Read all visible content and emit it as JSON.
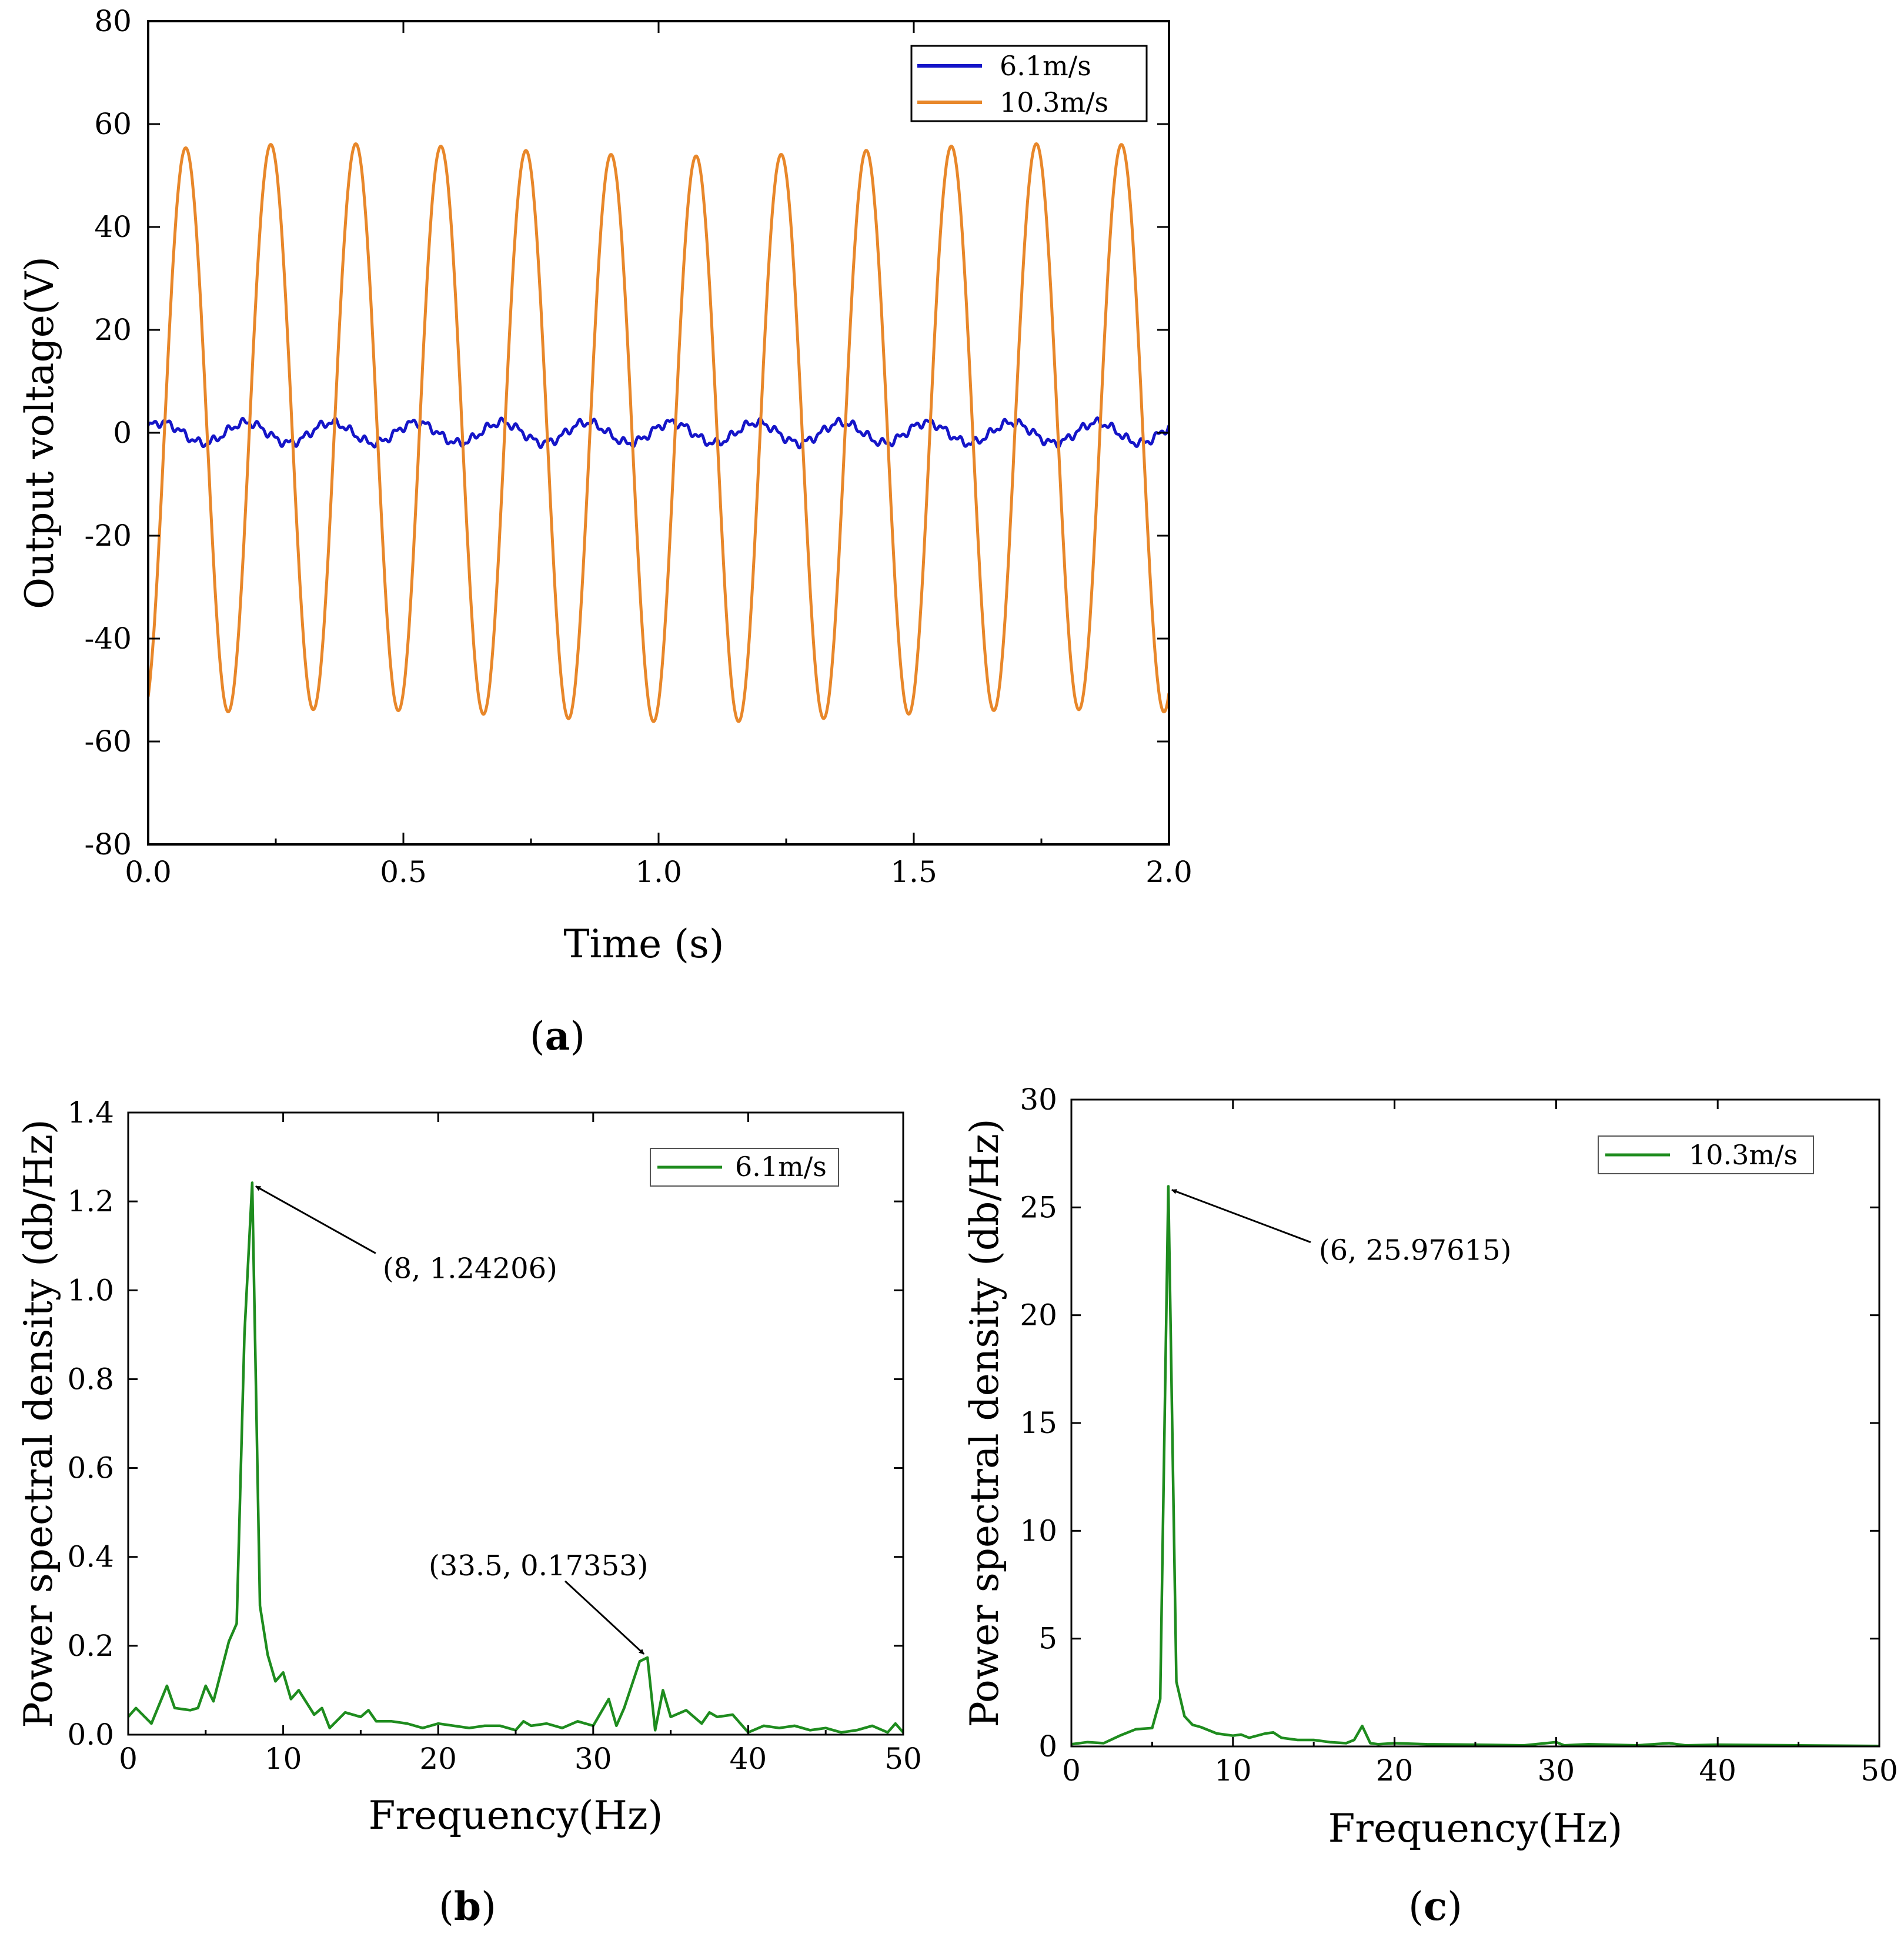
{
  "chart_data": [
    {
      "panel": "a",
      "type": "line",
      "title": "",
      "xlabel": "Time (s)",
      "ylabel": "Output voltage(V)",
      "xlim": [
        0.0,
        2.0
      ],
      "ylim": [
        -80,
        80
      ],
      "xticks": [
        "0.0",
        "0.5",
        "1.0",
        "1.5",
        "2.0"
      ],
      "yticks": [
        "80",
        "60",
        "40",
        "20",
        "0",
        "-20",
        "-40",
        "-60",
        "-80"
      ],
      "legend_position": "top-right",
      "series": [
        {
          "name": "6.1m/s",
          "color": "#1515c8",
          "frequency_hz": 6,
          "amplitude_v": 2
        },
        {
          "name": "10.3m/s",
          "color": "#e8872a",
          "frequency_hz": 6,
          "amplitude_v": 55
        }
      ]
    },
    {
      "panel": "b",
      "type": "line",
      "title": "",
      "xlabel": "Frequency(Hz)",
      "ylabel": "Power spectral density (db/Hz)",
      "xlim": [
        0,
        50
      ],
      "ylim": [
        0,
        1.4
      ],
      "xticks": [
        "0",
        "10",
        "20",
        "30",
        "40",
        "50"
      ],
      "yticks": [
        "1.4",
        "1.2",
        "1.0",
        "0.8",
        "0.6",
        "0.4",
        "0.2",
        "0.0"
      ],
      "legend_position": "top-right",
      "series": [
        {
          "name": "6.1m/s",
          "color": "#1e8c1e",
          "x": [
            0,
            0.5,
            1.5,
            2.5,
            3,
            4,
            4.5,
            5,
            5.5,
            6.5,
            7,
            7.5,
            8,
            8.5,
            9,
            9.5,
            10,
            10.5,
            11,
            12,
            12.5,
            13,
            14,
            15,
            15.5,
            16,
            17,
            18,
            19,
            20,
            21,
            22,
            23,
            24,
            25,
            25.5,
            26,
            27,
            28,
            29,
            30,
            31,
            31.5,
            32,
            33,
            33.5,
            34,
            34.5,
            35,
            36,
            37,
            37.5,
            38,
            39,
            40,
            41,
            42,
            43,
            44,
            45,
            46,
            47,
            48,
            49,
            49.5,
            50
          ],
          "values": [
            0.04,
            0.06,
            0.025,
            0.11,
            0.06,
            0.055,
            0.06,
            0.11,
            0.075,
            0.21,
            0.25,
            0.9,
            1.24206,
            0.29,
            0.18,
            0.12,
            0.14,
            0.08,
            0.1,
            0.045,
            0.06,
            0.015,
            0.05,
            0.04,
            0.055,
            0.03,
            0.03,
            0.025,
            0.015,
            0.025,
            0.02,
            0.015,
            0.02,
            0.02,
            0.01,
            0.03,
            0.02,
            0.025,
            0.015,
            0.03,
            0.02,
            0.08,
            0.02,
            0.06,
            0.165,
            0.17353,
            0.01,
            0.1,
            0.04,
            0.055,
            0.025,
            0.05,
            0.04,
            0.045,
            0.005,
            0.02,
            0.015,
            0.02,
            0.01,
            0.015,
            0.005,
            0.01,
            0.02,
            0.005,
            0.025,
            0.005
          ]
        }
      ],
      "annotations": [
        {
          "label": "(8, 1.24206)",
          "x": 8,
          "y": 1.24206
        },
        {
          "label": "(33.5, 0.17353)",
          "x": 33.5,
          "y": 0.17353
        }
      ]
    },
    {
      "panel": "c",
      "type": "line",
      "title": "",
      "xlabel": "Frequency(Hz)",
      "ylabel": "Power spectral density (db/Hz)",
      "xlim": [
        0,
        50
      ],
      "ylim": [
        0,
        30
      ],
      "xticks": [
        "0",
        "10",
        "20",
        "30",
        "40",
        "50"
      ],
      "yticks": [
        "30",
        "25",
        "20",
        "15",
        "10",
        "5",
        "0"
      ],
      "legend_position": "top-right",
      "series": [
        {
          "name": "10.3m/s",
          "color": "#1e8c1e",
          "x": [
            0,
            1,
            2,
            3,
            4,
            5,
            5.5,
            6,
            6.5,
            7,
            7.5,
            8,
            9,
            10,
            10.5,
            11,
            12,
            12.5,
            13,
            14,
            15,
            16,
            17,
            17.5,
            18,
            18.5,
            19,
            20,
            22,
            25,
            28,
            30,
            30.5,
            32,
            35,
            37,
            38,
            40,
            45,
            48,
            50
          ],
          "values": [
            0.1,
            0.2,
            0.15,
            0.5,
            0.8,
            0.85,
            2.2,
            25.97615,
            3.0,
            1.4,
            1.0,
            0.9,
            0.6,
            0.5,
            0.55,
            0.4,
            0.6,
            0.65,
            0.4,
            0.3,
            0.3,
            0.2,
            0.15,
            0.3,
            0.95,
            0.15,
            0.1,
            0.15,
            0.1,
            0.08,
            0.05,
            0.2,
            0.05,
            0.1,
            0.05,
            0.15,
            0.05,
            0.08,
            0.05,
            0.03,
            0.02
          ]
        }
      ],
      "annotations": [
        {
          "label": "(6, 25.97615)",
          "x": 6,
          "y": 25.97615
        }
      ]
    }
  ],
  "panel_labels": {
    "a": {
      "open": "(",
      "letter": "a",
      "close": ")"
    },
    "b": {
      "open": "(",
      "letter": "b",
      "close": ")"
    },
    "c": {
      "open": "(",
      "letter": "c",
      "close": ")"
    }
  }
}
